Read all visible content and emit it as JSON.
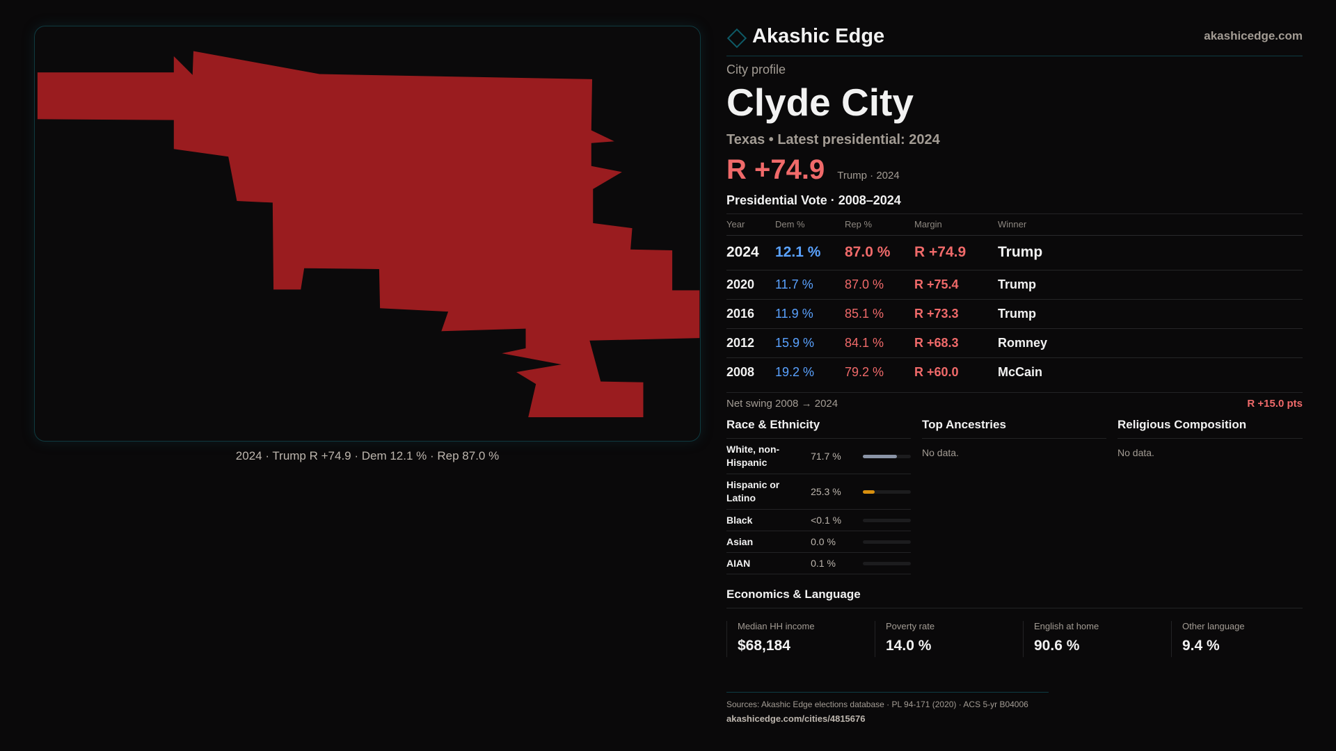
{
  "brand": {
    "name": "Akashic Edge",
    "site": "akashicedge.com",
    "accent": "#0e5a66"
  },
  "profile": {
    "kicker": "City profile",
    "city": "Clyde City",
    "subtitle": "Texas • Latest presidential: 2024",
    "margin": "R +74.9",
    "margin_note": "Trump · 2024"
  },
  "map": {
    "caption": "2024 · Trump R +74.9 · Dem 12.1 % · Rep 87.0 %",
    "fill": "#9a1c1f"
  },
  "votes": {
    "title": "Presidential Vote · 2008–2024",
    "headers": [
      "Year",
      "Dem %",
      "Rep %",
      "Margin",
      "Winner"
    ],
    "rows": [
      {
        "year": "2024",
        "dem": "12.1 %",
        "rep": "87.0 %",
        "margin": "R +74.9",
        "winner": "Trump"
      },
      {
        "year": "2020",
        "dem": "11.7 %",
        "rep": "87.0 %",
        "margin": "R +75.4",
        "winner": "Trump"
      },
      {
        "year": "2016",
        "dem": "11.9 %",
        "rep": "85.1 %",
        "margin": "R +73.3",
        "winner": "Trump"
      },
      {
        "year": "2012",
        "dem": "15.9 %",
        "rep": "84.1 %",
        "margin": "R +68.3",
        "winner": "Romney"
      },
      {
        "year": "2008",
        "dem": "19.2 %",
        "rep": "79.2 %",
        "margin": "R +60.0",
        "winner": "McCain"
      }
    ],
    "swing_label": "Net swing 2008 → 2024",
    "swing_value": "R +15.0 pts"
  },
  "race": {
    "title": "Race & Ethnicity",
    "rows": [
      {
        "label": "White, non-Hispanic",
        "value": "71.7 %",
        "pct": 71.7,
        "color": "#8a94a6"
      },
      {
        "label": "Hispanic or Latino",
        "value": "25.3 %",
        "pct": 25.3,
        "color": "#d8900f"
      },
      {
        "label": "Black",
        "value": "<0.1 %",
        "pct": 0,
        "color": "#8a94a6"
      },
      {
        "label": "Asian",
        "value": "0.0 %",
        "pct": 0,
        "color": "#8a94a6"
      },
      {
        "label": "AIAN",
        "value": "0.1 %",
        "pct": 0.1,
        "color": "#8a94a6"
      }
    ]
  },
  "ancestries": {
    "title": "Top Ancestries",
    "empty": "No data."
  },
  "religion": {
    "title": "Religious Composition",
    "empty": "No data."
  },
  "econ": {
    "title": "Economics & Language",
    "stats": [
      {
        "label": "Median HH income",
        "value": "$68,184"
      },
      {
        "label": "Poverty rate",
        "value": "14.0 %"
      },
      {
        "label": "English at home",
        "value": "90.6 %"
      },
      {
        "label": "Other language",
        "value": "9.4 %"
      }
    ]
  },
  "footer": {
    "sources": "Sources: Akashic Edge elections database · PL 94-171 (2020) · ACS 5-yr B04006",
    "url": "akashicedge.com/cities/4815676"
  }
}
